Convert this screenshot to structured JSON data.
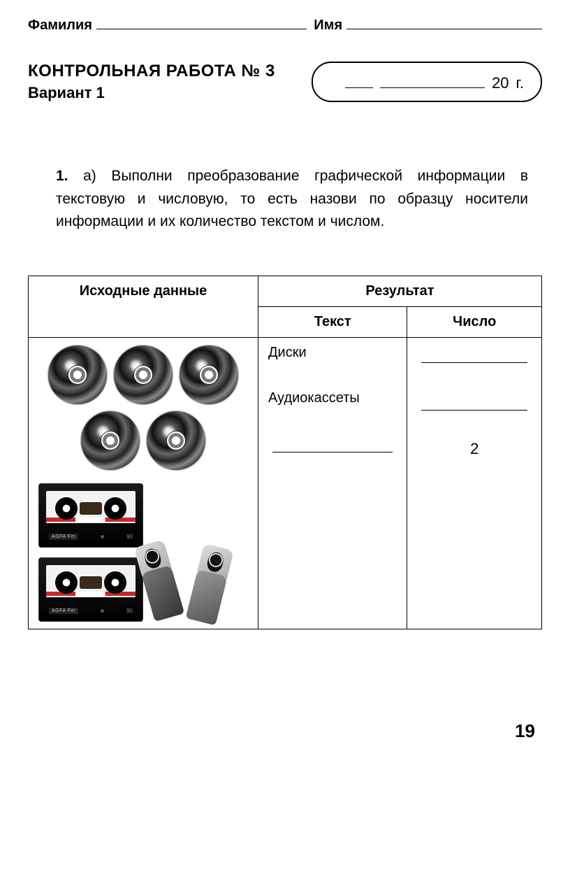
{
  "header": {
    "surname_label": "Фамилия",
    "name_label": "Имя"
  },
  "title": {
    "main": "КОНТРОЛЬНАЯ РАБОТА № 3",
    "variant": "Вариант 1"
  },
  "date": {
    "year_prefix": "20",
    "year_suffix": "г."
  },
  "task": {
    "number": "1.",
    "part": "а)",
    "text": "Выполни преобразование графической информации в текстовую и числовую, то есть назови по образцу носители информации и их количество текстом и числом."
  },
  "table": {
    "headers": {
      "source": "Исходные данные",
      "result": "Результат",
      "text": "Текст",
      "number": "Число"
    },
    "media": {
      "disc_count": 5,
      "cassette_count": 2,
      "usb_count": 2,
      "cassette_brand": "AGFA FeI",
      "cassette_length": "90"
    },
    "rows": [
      {
        "text_label": "Диски",
        "number_label": ""
      },
      {
        "text_label": "Аудиокассеты",
        "number_label": ""
      },
      {
        "text_label": "",
        "number_label": "2"
      }
    ]
  },
  "page_number": "19"
}
